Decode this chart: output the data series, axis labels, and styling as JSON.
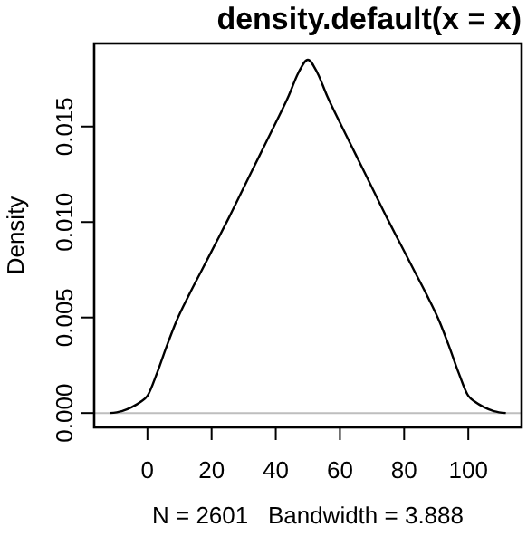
{
  "chart_data": {
    "type": "line",
    "title": "density.default(x = x)",
    "xlabel": "N = 2601   Bandwidth = 3.888",
    "ylabel": "Density",
    "x": [
      -11.7,
      -8,
      -5,
      -2,
      0,
      3,
      6,
      9,
      13,
      17,
      21,
      25,
      30,
      35,
      40,
      44,
      47,
      50,
      53,
      56,
      60,
      65,
      70,
      75,
      79,
      83,
      87,
      91,
      94,
      97,
      100,
      102,
      105,
      108,
      111.7
    ],
    "series": [
      {
        "color": "#000000",
        "values": [
          0,
          0.0001,
          0.0003,
          0.0006,
          0.0009,
          0.0021,
          0.0035,
          0.0048,
          0.0062,
          0.0075,
          0.0088,
          0.0101,
          0.0118,
          0.0135,
          0.0152,
          0.0166,
          0.0178,
          0.0185,
          0.0178,
          0.0166,
          0.0152,
          0.0135,
          0.0118,
          0.0101,
          0.0088,
          0.0075,
          0.0062,
          0.0048,
          0.0035,
          0.0021,
          0.0009,
          0.0006,
          0.0003,
          0.0001,
          0
        ]
      }
    ],
    "xlim": [
      -16.6,
      116.6
    ],
    "ylim": [
      -0.00075,
      0.01935
    ],
    "xticks": [
      0,
      20,
      40,
      60,
      80,
      100
    ],
    "yticks": [
      {
        "value": 0,
        "label": "0.000"
      },
      {
        "value": 0.005,
        "label": "0.005"
      },
      {
        "value": 0.01,
        "label": "0.010"
      },
      {
        "value": 0.015,
        "label": "0.015"
      }
    ],
    "ref_lines": [
      {
        "axis": "y",
        "value": 0,
        "color": "#bebebe"
      }
    ],
    "grid": false,
    "marker": "none",
    "line_style": "solid"
  }
}
